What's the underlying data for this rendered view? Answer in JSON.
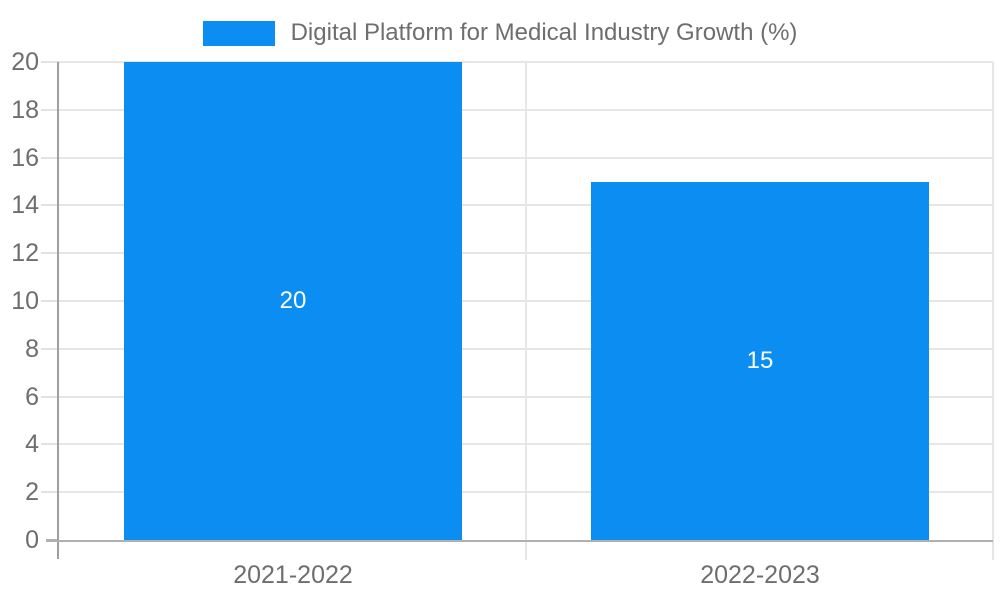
{
  "legend": {
    "label": "Digital Platform for Medical Industry Growth (%)"
  },
  "chart_data": {
    "type": "bar",
    "title": "Digital Platform for Medical Industry Growth (%)",
    "series_name": "Digital Platform for Medical Industry Growth (%)",
    "categories": [
      "2021-2022",
      "2022-2023"
    ],
    "values": [
      20,
      15
    ],
    "data_labels": [
      "20",
      "15"
    ],
    "xlabel": "",
    "ylabel": "",
    "ylim": [
      0,
      20
    ],
    "ytick_step": 2,
    "ytick_labels": [
      "0",
      "2",
      "4",
      "6",
      "8",
      "10",
      "12",
      "14",
      "16",
      "18",
      "20"
    ],
    "grid": true,
    "legend_position": "top-center"
  },
  "colors": {
    "bar": "#0b8df2",
    "legend_swatch": "#0b8df2",
    "gridline": "#e6e6e6",
    "x_axis_line": "#b0b0b0",
    "y_axis_line": "#9e9e9e",
    "axis_text": "#6e6e6e",
    "legend_text": "#6e6e6e",
    "data_label_text": "#ffffff",
    "background": "#ffffff"
  }
}
